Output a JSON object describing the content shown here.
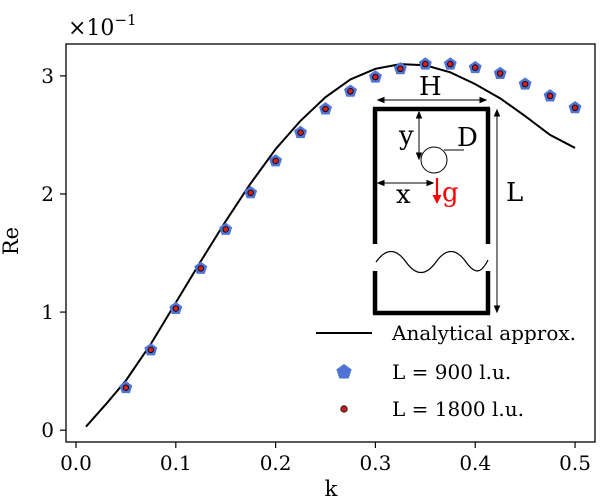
{
  "chart_data": {
    "type": "scatter",
    "xlabel": "k",
    "ylabel": "Re",
    "y_multiplier": "×10",
    "y_multiplier_exp": "−1",
    "xlim": [
      -0.01,
      0.52
    ],
    "ylim": [
      -0.1,
      3.27
    ],
    "xticks": [
      0.0,
      0.1,
      0.2,
      0.3,
      0.4,
      0.5
    ],
    "xtick_labels": [
      "0.0",
      "0.1",
      "0.2",
      "0.3",
      "0.4",
      "0.5"
    ],
    "yticks": [
      0,
      1,
      2,
      3
    ],
    "ytick_labels": [
      "0",
      "1",
      "2",
      "3"
    ],
    "grid": false,
    "legend_position": "bottom-right",
    "series": [
      {
        "name": "Analytical approx.",
        "kind": "line",
        "color": "#000000",
        "x": [
          0.01,
          0.03,
          0.05,
          0.075,
          0.1,
          0.125,
          0.15,
          0.175,
          0.2,
          0.225,
          0.25,
          0.275,
          0.3,
          0.325,
          0.35,
          0.375,
          0.4,
          0.425,
          0.45,
          0.475,
          0.5
        ],
        "y": [
          0.03,
          0.22,
          0.42,
          0.73,
          1.08,
          1.43,
          1.77,
          2.09,
          2.38,
          2.62,
          2.82,
          2.97,
          3.06,
          3.1,
          3.09,
          3.03,
          2.93,
          2.81,
          2.66,
          2.5,
          2.39
        ]
      },
      {
        "name": "L = 900 l.u.",
        "kind": "marker-pentagon",
        "color": "#4f74d6",
        "x": [
          0.05,
          0.075,
          0.1,
          0.125,
          0.15,
          0.175,
          0.2,
          0.225,
          0.25,
          0.275,
          0.3,
          0.325,
          0.35,
          0.375,
          0.4,
          0.425,
          0.45,
          0.475,
          0.5
        ],
        "y": [
          0.36,
          0.68,
          1.03,
          1.37,
          1.7,
          2.01,
          2.28,
          2.52,
          2.72,
          2.87,
          2.99,
          3.06,
          3.1,
          3.1,
          3.07,
          3.02,
          2.93,
          2.83,
          2.73
        ]
      },
      {
        "name": "L = 1800 l.u.",
        "kind": "marker-circle",
        "color": "#cc1f1f",
        "x": [
          0.05,
          0.075,
          0.1,
          0.125,
          0.15,
          0.175,
          0.2,
          0.225,
          0.25,
          0.275,
          0.3,
          0.325,
          0.35,
          0.375,
          0.4,
          0.425,
          0.45,
          0.475,
          0.5
        ],
        "y": [
          0.36,
          0.68,
          1.03,
          1.37,
          1.7,
          2.01,
          2.28,
          2.52,
          2.72,
          2.87,
          2.99,
          3.06,
          3.1,
          3.1,
          3.07,
          3.02,
          2.93,
          2.83,
          2.73
        ]
      }
    ]
  },
  "inset": {
    "H": "H",
    "D": "D",
    "y": "y",
    "x": "x",
    "g": "g",
    "L": "L",
    "g_color": "#ff0000"
  }
}
